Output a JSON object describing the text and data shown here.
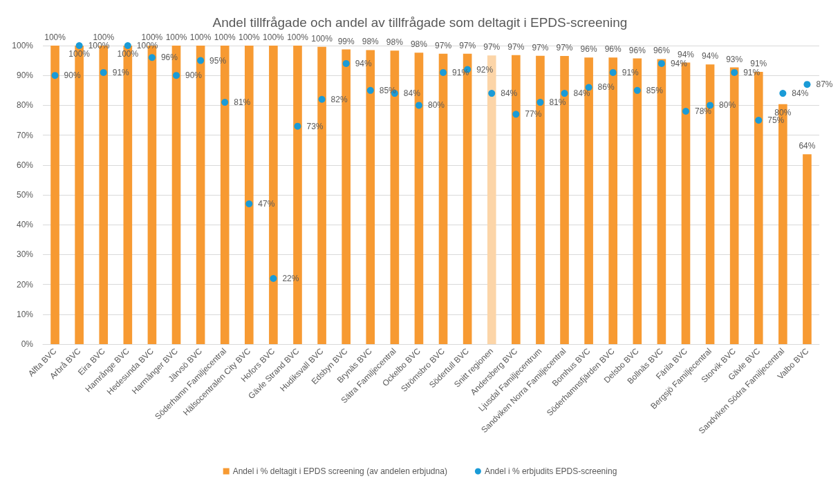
{
  "chart_data": {
    "type": "bar",
    "title": "Andel tillfrågade och andel av tillfrågade som deltagit i EPDS-screening",
    "categories": [
      "Alfta BVC",
      "Arbrå BVC",
      "Eira BVC",
      "Hamrånge BVC",
      "Hedesunda BVC",
      "Harmånger BVC",
      "Järvsö BVC",
      "Söderhamn Familjecentral",
      "Hälsocentralen City BVC",
      "Hofors BVC",
      "Gävle Strand BVC",
      "Hudiksvall BVC",
      "Edsbyn BVC",
      "Brynäs BVC",
      "Sätra Familjecentral",
      "Ockelbo BVC",
      "Strömsbro BVC",
      "Södertull BVC",
      "Snitt regionen",
      "Andersberg BVC",
      "Ljusdal Familjecentrum",
      "Sandviken Norra Familjecentral",
      "Bomhus BVC",
      "Söderhamnsfjärden BVC",
      "Delsbo BVC",
      "Bollnäs BVC",
      "Färila BVC",
      "Bergsjö Familjecentral",
      "Storvik BVC",
      "Gävle BVC",
      "Sandviken Södra Familjecentral",
      "Valbo BVC"
    ],
    "series": [
      {
        "name": "Andel i % deltagit i EPDS screening (av andelen erbjudna)",
        "color": "#f79a32",
        "colors": [
          "#f79a32",
          "#f79a32",
          "#f79a32",
          "#f79a32",
          "#f79a32",
          "#f79a32",
          "#f79a32",
          "#f79a32",
          "#f79a32",
          "#f79a32",
          "#f79a32",
          "#f79a32",
          "#f79a32",
          "#f79a32",
          "#f79a32",
          "#f79a32",
          "#f79a32",
          "#f79a32",
          "#fcd5a8",
          "#f79a32",
          "#f79a32",
          "#f79a32",
          "#f79a32",
          "#f79a32",
          "#f79a32",
          "#f79a32",
          "#f79a32",
          "#f79a32",
          "#f79a32",
          "#f79a32",
          "#f79a32",
          "#f79a32"
        ],
        "values": [
          100,
          100,
          100,
          100,
          100,
          100,
          100,
          100,
          100,
          100,
          100,
          99.6,
          98.7,
          98.5,
          98.3,
          97.6,
          97.3,
          97.3,
          96.7,
          96.8,
          96.6,
          96.5,
          96.0,
          96.0,
          95.7,
          95.5,
          94.3,
          93.7,
          92.7,
          91.2,
          80.4,
          63.6
        ],
        "value_labels": [
          "100%",
          "100%",
          "100%",
          "100%",
          "100%",
          "100%",
          "100%",
          "100%",
          "100%",
          "100%",
          "100%",
          "100%",
          "99%",
          "98%",
          "98%",
          "98%",
          "97%",
          "97%",
          "97%",
          "97%",
          "97%",
          "97%",
          "96%",
          "96%",
          "96%",
          "96%",
          "94%",
          "94%",
          "93%",
          "91%",
          "80%",
          "64%"
        ]
      },
      {
        "name": "Andel i % erbjudits EPDS-screening",
        "type": "scatter",
        "color": "#1a9bd7",
        "values": [
          90,
          100,
          91,
          100,
          96,
          90,
          95,
          81,
          47,
          22,
          73,
          82,
          94,
          85,
          84,
          80,
          91,
          92,
          84,
          77,
          81,
          84,
          86,
          91,
          85,
          94,
          78,
          80,
          91,
          75,
          84,
          87
        ],
        "value_labels": [
          "90%",
          "100%",
          "91%",
          "100%",
          "96%",
          "90%",
          "95%",
          "81%",
          "47%",
          "22%",
          "73%",
          "82%",
          "94%",
          "85%",
          "84%",
          "80%",
          "91%",
          "92%",
          "84%",
          "77%",
          "81%",
          "84%",
          "86%",
          "91%",
          "85%",
          "94%",
          "78%",
          "80%",
          "91%",
          "75%",
          "84%",
          "87%"
        ]
      }
    ],
    "ylim": [
      0,
      100
    ],
    "yticks": [
      {
        "value": 0,
        "label": "0%"
      },
      {
        "value": 10,
        "label": "10%"
      },
      {
        "value": 20,
        "label": "20%"
      },
      {
        "value": 30,
        "label": "30%"
      },
      {
        "value": 40,
        "label": "40%"
      },
      {
        "value": 50,
        "label": "50%"
      },
      {
        "value": 60,
        "label": "60%"
      },
      {
        "value": 70,
        "label": "70%"
      },
      {
        "value": 80,
        "label": "80%"
      },
      {
        "value": 90,
        "label": "90%"
      },
      {
        "value": 100,
        "label": "100%"
      }
    ],
    "grid": "y",
    "legend": "bottom",
    "marker": "circle"
  }
}
